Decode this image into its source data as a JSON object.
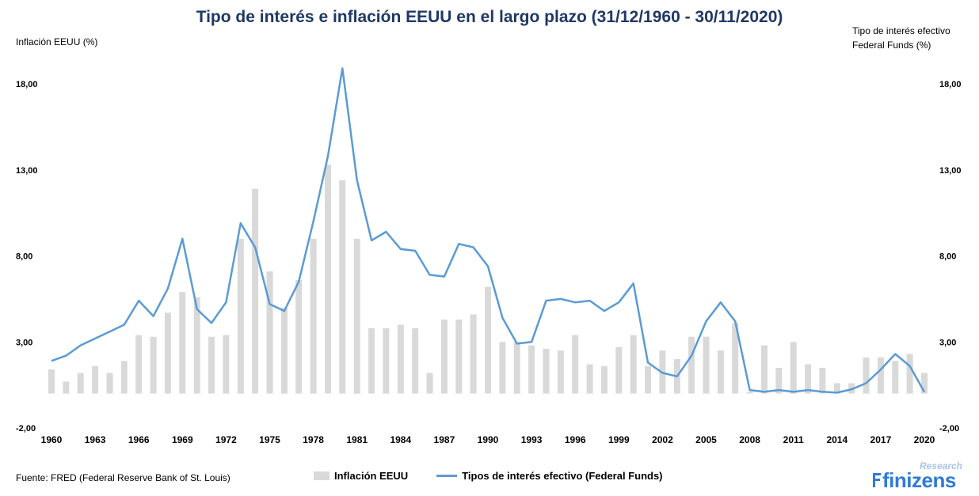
{
  "title": "Tipo de interés e inflación EEUU en el largo plazo (31/12/1960 - 30/11/2020)",
  "left_axis_label": "Inflación EEUU (%)",
  "right_axis_label_line1": "Tipo de interés efectivo",
  "right_axis_label_line2": "Federal Funds (%)",
  "source": "Fuente: FRED (Federal Reserve Bank of St. Louis)",
  "legend": {
    "bar": "Inflación EEUU",
    "line": "Tipos de interés efectivo (Federal Funds)"
  },
  "logo": {
    "brand": "finizens",
    "sub": "Research"
  },
  "colors": {
    "bar": "#d9d9d9",
    "line": "#5b9bd5",
    "title": "#1f3864"
  },
  "chart_data": {
    "type": "bar",
    "x": [
      1960,
      1961,
      1962,
      1963,
      1964,
      1965,
      1966,
      1967,
      1968,
      1969,
      1970,
      1971,
      1972,
      1973,
      1974,
      1975,
      1976,
      1977,
      1978,
      1979,
      1980,
      1981,
      1982,
      1983,
      1984,
      1985,
      1986,
      1987,
      1988,
      1989,
      1990,
      1991,
      1992,
      1993,
      1994,
      1995,
      1996,
      1997,
      1998,
      1999,
      2000,
      2001,
      2002,
      2003,
      2004,
      2005,
      2006,
      2007,
      2008,
      2009,
      2010,
      2011,
      2012,
      2013,
      2014,
      2015,
      2016,
      2017,
      2018,
      2019,
      2020
    ],
    "x_ticks": [
      "1960",
      "1963",
      "1966",
      "1969",
      "1972",
      "1975",
      "1978",
      "1981",
      "1984",
      "1987",
      "1990",
      "1993",
      "1996",
      "1999",
      "2002",
      "2005",
      "2008",
      "2011",
      "2014",
      "2017",
      "2020"
    ],
    "y_ticks": [
      "-2,00",
      "3,00",
      "8,00",
      "13,00",
      "18,00"
    ],
    "ylim": [
      -2,
      18
    ],
    "grid": false,
    "series": [
      {
        "name": "Inflación EEUU",
        "type": "bar",
        "values": [
          1.4,
          0.7,
          1.2,
          1.6,
          1.2,
          1.9,
          3.4,
          3.3,
          4.7,
          5.9,
          5.6,
          3.3,
          3.4,
          9.0,
          11.9,
          7.1,
          5.0,
          6.6,
          9.0,
          13.3,
          12.4,
          9.0,
          3.8,
          3.8,
          4.0,
          3.8,
          1.2,
          4.3,
          4.3,
          4.6,
          6.2,
          3.0,
          3.0,
          2.8,
          2.6,
          2.5,
          3.4,
          1.7,
          1.6,
          2.7,
          3.4,
          1.6,
          2.5,
          2.0,
          3.3,
          3.3,
          2.5,
          4.1,
          0.1,
          2.8,
          1.5,
          3.0,
          1.7,
          1.5,
          0.6,
          0.6,
          2.1,
          2.1,
          1.9,
          2.3,
          1.2
        ]
      },
      {
        "name": "Tipos de interés efectivo (Federal Funds)",
        "type": "line",
        "values": [
          1.9,
          2.2,
          2.8,
          3.2,
          3.6,
          4.0,
          5.4,
          4.5,
          6.1,
          9.0,
          4.9,
          4.1,
          5.3,
          9.9,
          8.5,
          5.2,
          4.8,
          6.5,
          10.0,
          13.8,
          18.9,
          12.4,
          8.9,
          9.4,
          8.4,
          8.3,
          6.9,
          6.8,
          8.7,
          8.5,
          7.4,
          4.4,
          2.9,
          3.0,
          5.4,
          5.5,
          5.3,
          5.4,
          4.8,
          5.3,
          6.4,
          1.8,
          1.2,
          1.0,
          2.2,
          4.2,
          5.3,
          4.2,
          0.2,
          0.1,
          0.2,
          0.1,
          0.2,
          0.1,
          0.05,
          0.25,
          0.6,
          1.4,
          2.3,
          1.6,
          0.09
        ]
      }
    ]
  }
}
